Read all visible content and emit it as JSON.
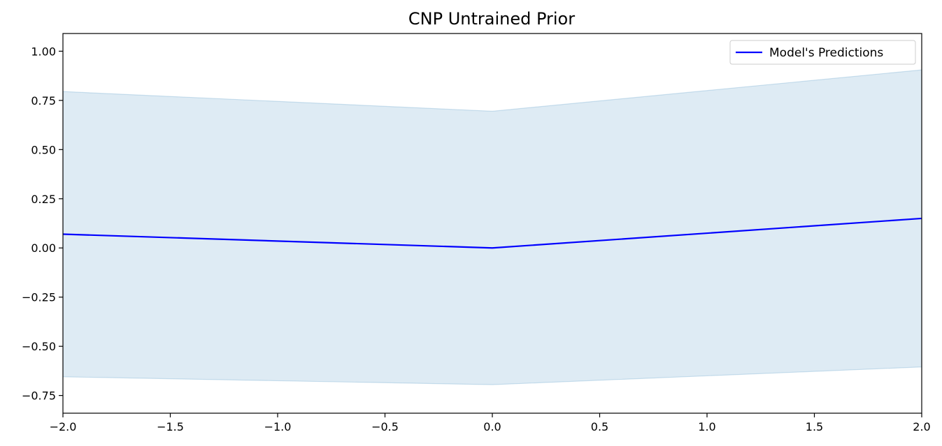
{
  "chart_data": {
    "type": "line",
    "title": "CNP Untrained Prior",
    "xlabel": "",
    "ylabel": "",
    "xlim": [
      -2.0,
      2.0
    ],
    "ylim": [
      -0.84,
      1.09
    ],
    "x_ticks": [
      -2.0,
      -1.5,
      -1.0,
      -0.5,
      0.0,
      0.5,
      1.0,
      1.5,
      2.0
    ],
    "x_tick_labels": [
      "−2.0",
      "−1.5",
      "−1.0",
      "−0.5",
      "0.0",
      "0.5",
      "1.0",
      "1.5",
      "2.0"
    ],
    "y_ticks": [
      1.0,
      0.75,
      0.5,
      0.25,
      0.0,
      -0.25,
      -0.5,
      -0.75
    ],
    "y_tick_labels": [
      "1.00",
      "0.75",
      "0.50",
      "0.25",
      "0.00",
      "−0.25",
      "−0.50",
      "−0.75"
    ],
    "grid": false,
    "legend_position": "top-right",
    "series": [
      {
        "name": "Model's Predictions",
        "color": "#0000ff",
        "x": [
          -2.0,
          0.0,
          2.0
        ],
        "y": [
          0.07,
          0.0,
          0.15
        ]
      }
    ],
    "band": {
      "color": "#1f77b4",
      "opacity": 0.15,
      "x": [
        -2.0,
        0.0,
        2.0
      ],
      "upper": [
        0.795,
        0.695,
        0.905
      ],
      "lower": [
        -0.655,
        -0.695,
        -0.605
      ]
    }
  }
}
